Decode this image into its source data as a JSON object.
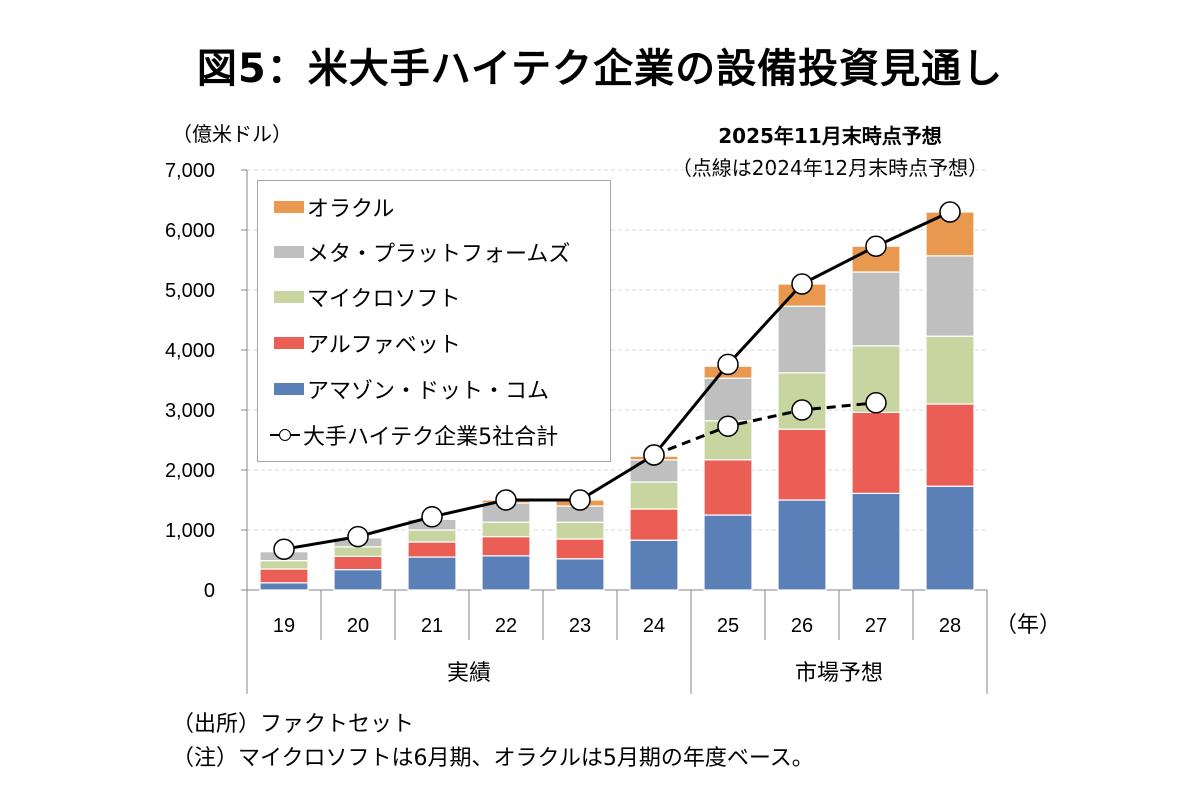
{
  "title": "図5：米大手ハイテク企業の設備投資見通し",
  "unit_label": "（億米ドル）",
  "annotation": {
    "line1": "2025年11月末時点予想",
    "line2": "（点線は2024年12月末時点予想）"
  },
  "footnotes": {
    "source": "（出所）ファクトセット",
    "note": "（注）マイクロソフトは6月期、オラクルは5月期の年度ベース。"
  },
  "chart_data": {
    "type": "bar",
    "stacked": true,
    "title": "図5：米大手ハイテク企業の設備投資見通し",
    "xlabel": "（年）",
    "ylabel": "（億米ドル）",
    "ylim": [
      0,
      7000
    ],
    "yticks": [
      0,
      1000,
      2000,
      3000,
      4000,
      5000,
      6000,
      7000
    ],
    "ytick_labels": [
      "0",
      "1,000",
      "2,000",
      "3,000",
      "4,000",
      "5,000",
      "6,000",
      "7,000"
    ],
    "grid": true,
    "legend_position": "top-left",
    "categories": [
      "19",
      "20",
      "21",
      "22",
      "23",
      "24",
      "25",
      "26",
      "27",
      "28"
    ],
    "category_groups": [
      {
        "label": "実績",
        "categories": [
          "19",
          "20",
          "21",
          "22",
          "23",
          "24"
        ]
      },
      {
        "label": "市場予想",
        "categories": [
          "25",
          "26",
          "27",
          "28"
        ]
      }
    ],
    "series": [
      {
        "name": "アマゾン・ドット・コム",
        "color": "#5B80B8",
        "values": [
          120,
          340,
          550,
          570,
          520,
          830,
          1250,
          1500,
          1610,
          1730
        ]
      },
      {
        "name": "アルファベット",
        "color": "#EB5E55",
        "values": [
          230,
          220,
          250,
          320,
          330,
          520,
          920,
          1180,
          1350,
          1370
        ]
      },
      {
        "name": "マイクロソフト",
        "color": "#C8D5A1",
        "values": [
          140,
          160,
          200,
          240,
          280,
          450,
          650,
          940,
          1110,
          1130
        ]
      },
      {
        "name": "メタ・プラットフォームズ",
        "color": "#BFBFBF",
        "values": [
          150,
          150,
          180,
          320,
          270,
          370,
          710,
          1110,
          1230,
          1340
        ]
      },
      {
        "name": "オラクル",
        "color": "#E9994F",
        "values": [
          20,
          20,
          20,
          50,
          100,
          60,
          200,
          370,
          430,
          730
        ]
      }
    ],
    "lines": [
      {
        "name": "大手ハイテク企業5社合計",
        "style": "solid",
        "marker": "circle",
        "values": [
          680,
          890,
          1220,
          1500,
          1500,
          2250,
          3760,
          5100,
          5730,
          6300
        ]
      },
      {
        "name": "大手ハイテク企業5社合計（2024年12月末時点予想）",
        "style": "dashed",
        "marker": "circle",
        "in_legend": false,
        "values": [
          null,
          null,
          null,
          null,
          null,
          2250,
          2730,
          3000,
          3120,
          null
        ]
      }
    ],
    "legend_entries": [
      "オラクル",
      "メタ・プラットフォームズ",
      "マイクロソフト",
      "アルファベット",
      "アマゾン・ドット・コム",
      "大手ハイテク企業5社合計"
    ]
  }
}
